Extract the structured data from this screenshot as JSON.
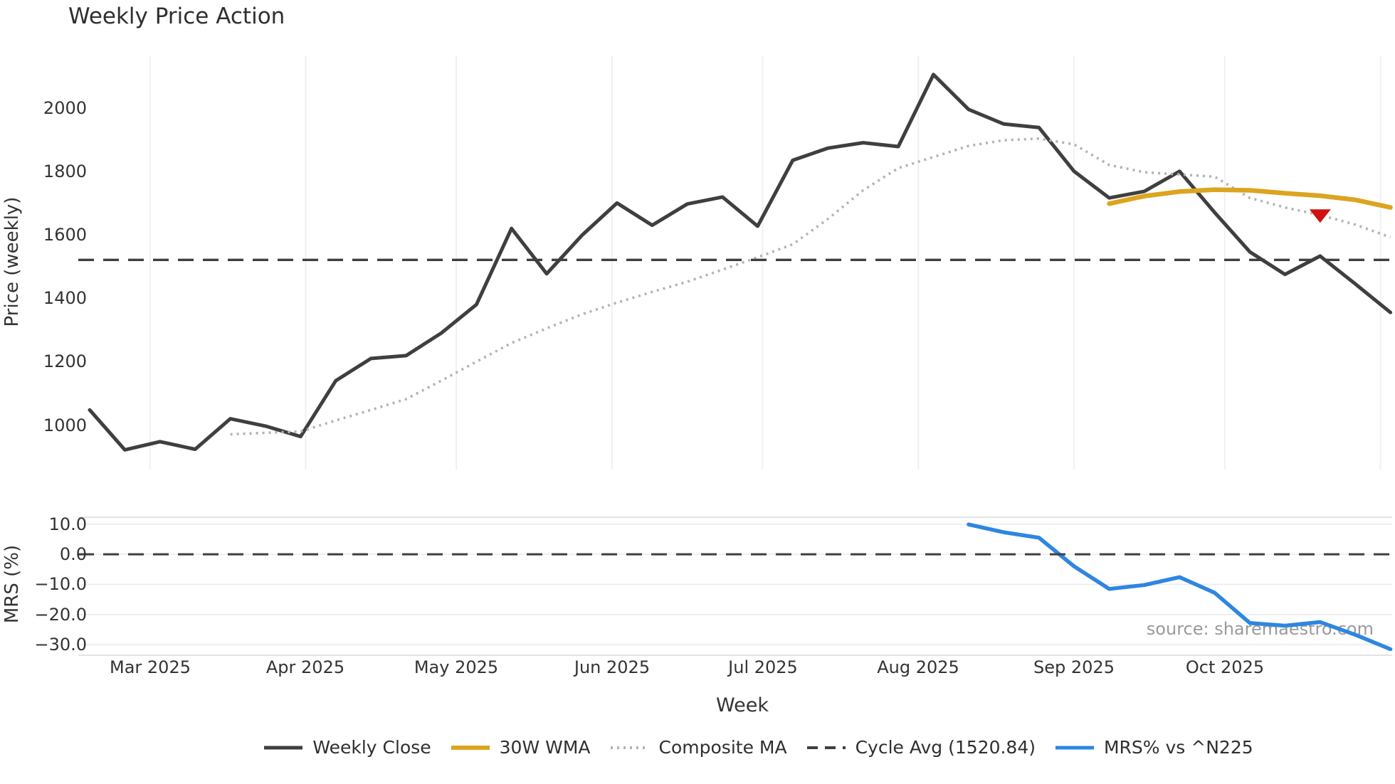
{
  "title": "Weekly Price Action",
  "source_text": "source: sharemaestro.com",
  "colors": {
    "weekly_close": "#3f3f3f",
    "wma30": "#dca41f",
    "composite_ma": "#b3b3b3",
    "cycle_avg": "#3f3f3f",
    "mrs": "#2e86e0",
    "marker": "#ce1212",
    "grid_vertical": "#eef0f4",
    "grid_horizontal": "#ebebeb",
    "spine": "#d8d8d8",
    "tick_text": "#333333",
    "source_text_color": "#9a9a9a"
  },
  "axes": {
    "price_axis_label": "Price (weekly)",
    "mrs_axis_label": "MRS (%)",
    "x_axis_label": "Week",
    "price_ticks": [
      {
        "value": 1000,
        "label": "1000"
      },
      {
        "value": 1200,
        "label": "1200"
      },
      {
        "value": 1400,
        "label": "1400"
      },
      {
        "value": 1600,
        "label": "1600"
      },
      {
        "value": 1800,
        "label": "1800"
      },
      {
        "value": 2000,
        "label": "2000"
      }
    ],
    "mrs_ticks": [
      {
        "value": 10,
        "label": "10.0"
      },
      {
        "value": 0,
        "label": "0.0"
      },
      {
        "value": -10,
        "label": "−10.0"
      },
      {
        "value": -20,
        "label": "−20.0"
      },
      {
        "value": -30,
        "label": "−30.0"
      }
    ],
    "month_ticks": [
      {
        "date": "2025-03-01",
        "label": "Mar 2025"
      },
      {
        "date": "2025-04-01",
        "label": "Apr 2025"
      },
      {
        "date": "2025-05-01",
        "label": "May 2025"
      },
      {
        "date": "2025-06-01",
        "label": "Jun 2025"
      },
      {
        "date": "2025-07-01",
        "label": "Jul 2025"
      },
      {
        "date": "2025-08-01",
        "label": "Aug 2025"
      },
      {
        "date": "2025-09-01",
        "label": "Sep 2025"
      },
      {
        "date": "2025-10-01",
        "label": "Oct 2025"
      },
      {
        "date": "2025-11-01",
        "label": ""
      }
    ]
  },
  "legend": [
    {
      "label": "Weekly Close",
      "swatch": "solid",
      "color": "#3f3f3f"
    },
    {
      "label": "30W WMA",
      "swatch": "solid",
      "color": "#dca41f"
    },
    {
      "label": "Composite MA",
      "swatch": "dotted",
      "color": "#b3b3b3"
    },
    {
      "label": "Cycle Avg (1520.84)",
      "swatch": "dashed",
      "color": "#3f3f3f"
    },
    {
      "label": "MRS% vs ^N225",
      "swatch": "solid",
      "color": "#2e86e0"
    }
  ],
  "chart_data": {
    "type": "line",
    "title": "Weekly Price Action",
    "xlabel": "Week",
    "x_weeks": [
      "2025-02-17",
      "2025-02-24",
      "2025-03-03",
      "2025-03-10",
      "2025-03-17",
      "2025-03-24",
      "2025-03-31",
      "2025-04-07",
      "2025-04-14",
      "2025-04-21",
      "2025-04-28",
      "2025-05-05",
      "2025-05-12",
      "2025-05-19",
      "2025-05-26",
      "2025-06-02",
      "2025-06-09",
      "2025-06-16",
      "2025-06-23",
      "2025-06-30",
      "2025-07-07",
      "2025-07-14",
      "2025-07-21",
      "2025-07-28",
      "2025-08-04",
      "2025-08-11",
      "2025-08-18",
      "2025-08-25",
      "2025-09-01",
      "2025-09-08",
      "2025-09-15",
      "2025-09-22",
      "2025-09-29",
      "2025-10-06",
      "2025-10-13",
      "2025-10-20",
      "2025-10-27",
      "2025-11-03"
    ],
    "panels": [
      {
        "name": "price",
        "ylabel": "Price (weekly)",
        "ylim": [
          860,
          2165
        ],
        "grid": "vertical-months",
        "series": [
          {
            "name": "Weekly Close",
            "style": "solid",
            "color": "#3f3f3f",
            "width": 5,
            "start_index": 0,
            "values": [
              1048,
              922,
              948,
              924,
              1020,
              997,
              964,
              1140,
              1210,
              1219,
              1290,
              1380,
              1620,
              1477,
              1598,
              1700,
              1630,
              1697,
              1719,
              1627,
              1835,
              1873,
              1890,
              1878,
              2105,
              1995,
              1949,
              1938,
              1800,
              1716,
              1737,
              1800,
              1670,
              1546,
              1475,
              1533,
              1445,
              1355
            ]
          },
          {
            "name": "Composite MA",
            "style": "dotted",
            "color": "#b3b3b3",
            "width": 3.6,
            "start_index": 4,
            "values": [
              971,
              976,
              980,
              1015,
              1048,
              1082,
              1140,
              1200,
              1259,
              1305,
              1349,
              1386,
              1420,
              1452,
              1490,
              1529,
              1570,
              1650,
              1740,
              1810,
              1845,
              1880,
              1898,
              1903,
              1885,
              1820,
              1797,
              1790,
              1783,
              1716,
              1686,
              1662,
              1632,
              1592
            ]
          },
          {
            "name": "30W WMA",
            "style": "solid",
            "color": "#dca41f",
            "width": 6.5,
            "start_index": 29,
            "values": [
              1698,
              1722,
              1736,
              1742,
              1740,
              1731,
              1723,
              1710,
              1686
            ]
          },
          {
            "name": "Cycle Avg",
            "style": "dashed",
            "color": "#3f3f3f",
            "width": 3.4,
            "constant": 1520.84
          }
        ],
        "marker": {
          "date": "2025-10-20",
          "value": 1660,
          "shape": "triangle-down",
          "color": "#ce1212"
        }
      },
      {
        "name": "mrs",
        "ylabel": "MRS (%)",
        "ylim": [
          -33.5,
          12.3
        ],
        "grid": "horizontal-ticks",
        "series": [
          {
            "name": "MRS% vs ^N225",
            "style": "solid",
            "color": "#2e86e0",
            "width": 5.5,
            "start_index": 25,
            "values": [
              9.9,
              7.3,
              5.5,
              -4.0,
              -11.5,
              -10.2,
              -7.6,
              -12.8,
              -22.8,
              -23.7,
              -22.5,
              -26.7,
              -31.5
            ]
          },
          {
            "name": "Zero line",
            "style": "dashed",
            "color": "#3f3f3f",
            "width": 3,
            "constant": 0
          }
        ]
      }
    ]
  }
}
